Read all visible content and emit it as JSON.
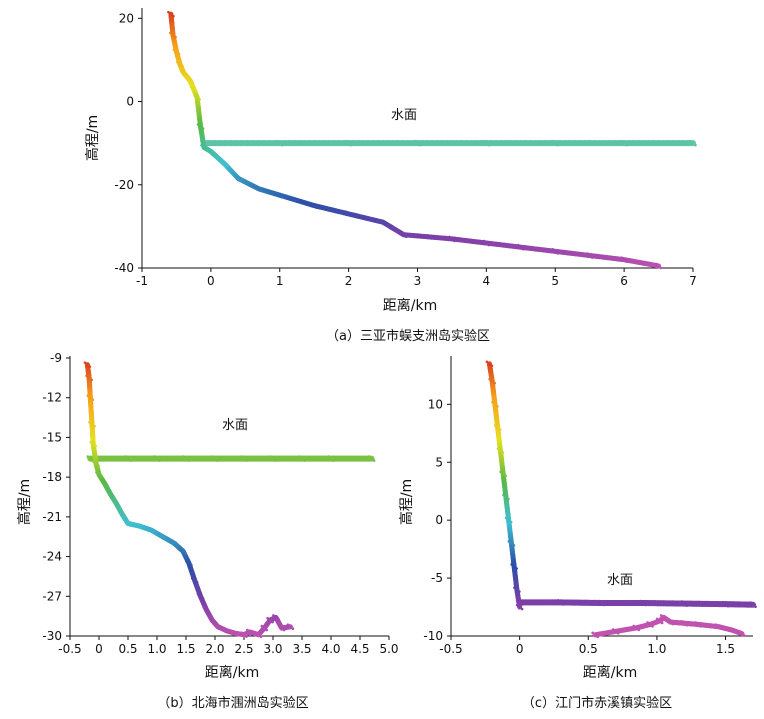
{
  "chart_data": [
    {
      "type": "scatter",
      "caption": "（a）三亚市蜈支洲岛实验区",
      "xlabel": "距离/km",
      "ylabel": "高程/m",
      "annotation": "水面",
      "xlim": [
        -1,
        7
      ],
      "ylim": [
        -40,
        22
      ],
      "xticks": [
        -1,
        0,
        1,
        2,
        3,
        4,
        5,
        6,
        7
      ],
      "xtick_labels": [
        "-1",
        "0",
        "1",
        "2",
        "3",
        "4",
        "5",
        "6",
        "7"
      ],
      "yticks": [
        20,
        0,
        -20,
        -40
      ],
      "ytick_labels": [
        "20",
        "0",
        "-20",
        "-40"
      ],
      "series": [
        {
          "role": "water-surface",
          "color": "#5cc3a6",
          "x": [
            -0.1,
            1,
            2,
            3,
            4,
            5,
            6,
            7
          ],
          "y": [
            -10,
            -10,
            -10,
            -10,
            -10,
            -10,
            -10,
            -10
          ]
        },
        {
          "role": "terrain",
          "color": "elevation-gradient",
          "x": [
            -0.58,
            -0.55,
            -0.5,
            -0.45,
            -0.4,
            -0.35,
            -0.3,
            -0.25,
            -0.2,
            -0.15,
            -0.1,
            0,
            0.2,
            0.4,
            0.7,
            1,
            1.5,
            2,
            2.5,
            2.8,
            3.5,
            4,
            4.5,
            5,
            5.5,
            6,
            6.5
          ],
          "y": [
            21,
            16,
            12,
            9,
            7,
            6,
            5,
            3,
            1,
            -6,
            -11,
            -12,
            -15,
            -18.5,
            -21,
            -22.5,
            -25,
            -27,
            -29,
            -32,
            -33,
            -34,
            -35,
            -36,
            -37,
            -38,
            -39.5
          ]
        }
      ]
    },
    {
      "type": "scatter",
      "caption": "（b）北海市涠洲岛实验区",
      "xlabel": "距离/km",
      "ylabel": "高程/m",
      "annotation": "水面",
      "xlim": [
        -0.5,
        5.0
      ],
      "ylim": [
        -30,
        -9
      ],
      "xticks": [
        -0.5,
        0,
        0.5,
        1,
        1.5,
        2,
        2.5,
        3,
        3.5,
        4,
        4.5,
        5
      ],
      "xtick_labels": [
        "-0.5",
        "0",
        "0.5",
        "1.0",
        "1.5",
        "2.0",
        "2.5",
        "3.0",
        "3.5",
        "4.0",
        "4.5",
        "5.0"
      ],
      "yticks": [
        -9,
        -12,
        -15,
        -18,
        -21,
        -24,
        -27,
        -30
      ],
      "ytick_labels": [
        "-9",
        "-12",
        "-15",
        "-18",
        "-21",
        "-24",
        "-27",
        "-30"
      ],
      "series": [
        {
          "role": "water-surface",
          "color": "#7ac142",
          "x": [
            -0.15,
            0.5,
            1,
            1.5,
            2,
            2.5,
            3,
            3.5,
            4,
            4.7
          ],
          "y": [
            -16.6,
            -16.6,
            -16.6,
            -16.6,
            -16.6,
            -16.6,
            -16.6,
            -16.6,
            -16.6,
            -16.6
          ]
        },
        {
          "role": "terrain",
          "color": "elevation-gradient",
          "x": [
            -0.2,
            -0.17,
            -0.15,
            -0.12,
            -0.1,
            -0.05,
            0,
            0.1,
            0.2,
            0.3,
            0.4,
            0.5,
            0.7,
            0.9,
            1.1,
            1.3,
            1.45,
            1.55,
            1.65,
            1.75,
            1.85,
            1.95,
            2.05,
            2.2,
            2.35,
            2.5,
            2.6,
            2.75,
            2.85,
            2.95,
            3.05,
            3.15,
            3.3
          ],
          "y": [
            -9.5,
            -10.5,
            -12,
            -14,
            -15.5,
            -17,
            -17.8,
            -18.5,
            -19.3,
            -20,
            -20.8,
            -21.5,
            -21.7,
            -22,
            -22.5,
            -23,
            -23.6,
            -24.5,
            -25.8,
            -27,
            -28,
            -28.8,
            -29.3,
            -29.6,
            -29.8,
            -29.9,
            -29.7,
            -29.9,
            -29.4,
            -28.8,
            -28.6,
            -29.4,
            -29.3
          ]
        }
      ]
    },
    {
      "type": "scatter",
      "caption": "（c）江门市赤溪镇实验区",
      "xlabel": "距离/km",
      "ylabel": "高程/m",
      "annotation": "水面",
      "xlim": [
        -0.5,
        1.7
      ],
      "ylim": [
        -10,
        14
      ],
      "xticks": [
        -0.5,
        0,
        0.5,
        1,
        1.5
      ],
      "xtick_labels": [
        "-0.5",
        "0",
        "0.5",
        "1.0",
        "1.5"
      ],
      "yticks": [
        10,
        5,
        0,
        -5,
        -10
      ],
      "ytick_labels": [
        "10",
        "5",
        "0",
        "-5",
        "-10"
      ],
      "series": [
        {
          "role": "water-surface",
          "color": "#7b3fa8",
          "x": [
            0,
            0.3,
            0.6,
            0.9,
            1.2,
            1.5,
            1.7
          ],
          "y": [
            -7.1,
            -7.1,
            -7.15,
            -7.15,
            -7.2,
            -7.25,
            -7.3
          ]
        },
        {
          "role": "terrain",
          "color": "elevation-gradient",
          "x": [
            -0.22,
            -0.2,
            -0.18,
            -0.16,
            -0.14,
            -0.12,
            -0.1,
            -0.08,
            -0.06,
            -0.04,
            -0.02,
            0
          ],
          "y": [
            13.5,
            12,
            10,
            8,
            6,
            4,
            2,
            0,
            -2,
            -4,
            -6,
            -7.5
          ]
        },
        {
          "role": "seabed",
          "color": "#c052b0",
          "x": [
            0.55,
            0.7,
            0.85,
            0.95,
            1.02,
            1.05,
            1.1,
            1.2,
            1.3,
            1.45,
            1.55,
            1.62
          ],
          "y": [
            -9.9,
            -9.6,
            -9.3,
            -9.0,
            -8.7,
            -8.4,
            -8.8,
            -8.9,
            -9.0,
            -9.2,
            -9.5,
            -9.8
          ]
        }
      ]
    }
  ]
}
